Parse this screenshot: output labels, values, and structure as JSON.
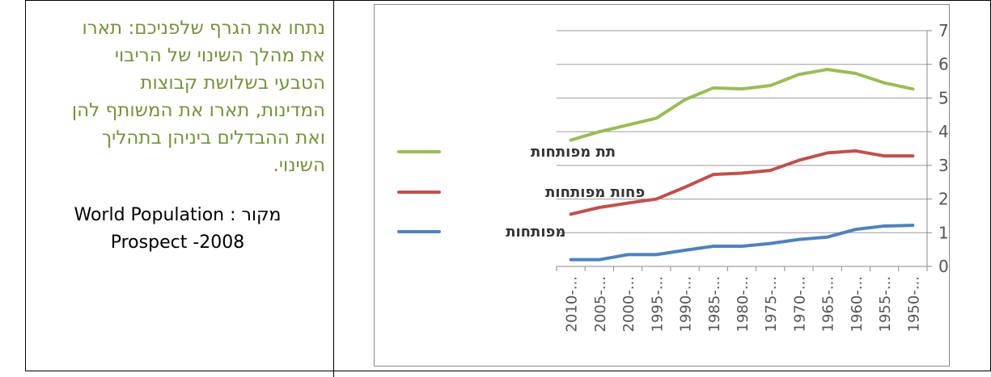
{
  "question": {
    "lines": [
      "נתחו את הגרף שלפניכם: תארו",
      "את מהלך השינוי של הריבוי",
      "הטבעי בשלושת קבוצות",
      "המדינות, תארו את המשותף להן",
      "ואת ההבדלים ביניהן בתהליך",
      "השינוי."
    ]
  },
  "source": {
    "label": "מקור :",
    "text_line1": "World Population",
    "text_line2": "Prospect -2008"
  },
  "chart_data": {
    "type": "line",
    "categories": [
      "2010-...",
      "2005-...",
      "2000-...",
      "1995-...",
      "1990-...",
      "1985-...",
      "1980-...",
      "1975-...",
      "1970-...",
      "1965-...",
      "1960-...",
      "1955-...",
      "1950-..."
    ],
    "series": [
      {
        "name": "תת מפותחות",
        "color": "#9bbb59",
        "values": [
          3.75,
          4.0,
          4.2,
          4.4,
          4.95,
          5.3,
          5.27,
          5.37,
          5.7,
          5.85,
          5.73,
          5.45,
          5.27
        ]
      },
      {
        "name": "פחות מפותחות",
        "color": "#c0504d",
        "values": [
          1.55,
          1.75,
          1.88,
          2.0,
          2.35,
          2.73,
          2.77,
          2.85,
          3.15,
          3.37,
          3.43,
          3.28,
          3.28
        ]
      },
      {
        "name": "מפותחות",
        "color": "#4f81bd",
        "values": [
          0.2,
          0.2,
          0.35,
          0.35,
          0.48,
          0.6,
          0.6,
          0.68,
          0.8,
          0.87,
          1.1,
          1.2,
          1.22
        ]
      }
    ],
    "y_ticks": [
      "0",
      "1",
      "2",
      "3",
      "4",
      "5",
      "6",
      "7"
    ],
    "ylim": [
      0,
      7
    ],
    "y_axis_side": "right",
    "grid": true,
    "legend_placement": "left"
  }
}
